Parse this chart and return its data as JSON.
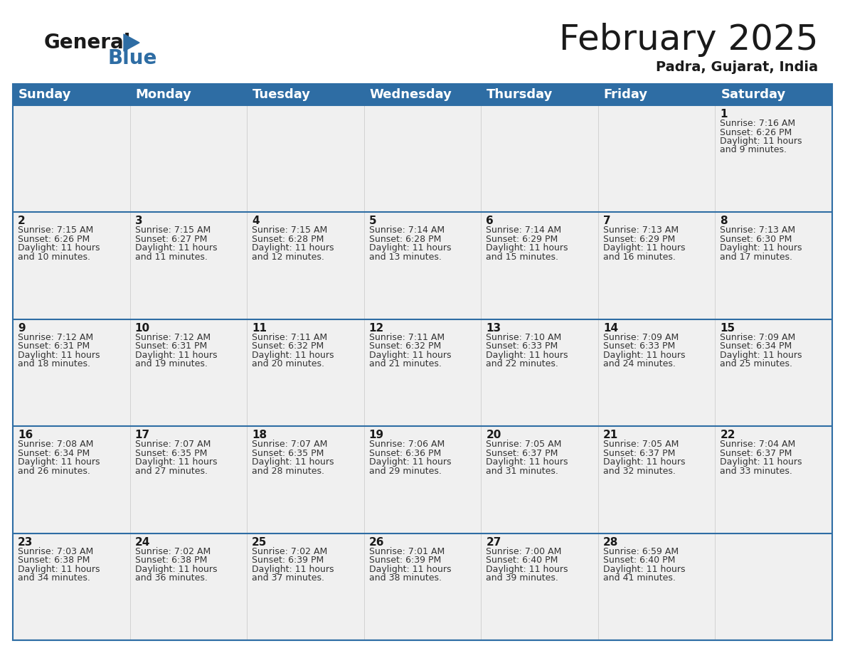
{
  "title": "February 2025",
  "subtitle": "Padra, Gujarat, India",
  "header_color": "#2e6da4",
  "header_text_color": "#ffffff",
  "cell_bg": "#f0f0f0",
  "separator_color": "#2e6da4",
  "days_of_week": [
    "Sunday",
    "Monday",
    "Tuesday",
    "Wednesday",
    "Thursday",
    "Friday",
    "Saturday"
  ],
  "title_fontsize": 36,
  "subtitle_fontsize": 14,
  "day_header_fontsize": 13,
  "date_fontsize": 11,
  "info_fontsize": 9,
  "logo_general_color": "#1a1a1a",
  "logo_blue_color": "#2e6da4",
  "calendar_data": [
    [
      null,
      null,
      null,
      null,
      null,
      null,
      {
        "day": 1,
        "sunrise": "7:16 AM",
        "sunset": "6:26 PM",
        "daylight_line1": "Daylight: 11 hours",
        "daylight_line2": "and 9 minutes."
      }
    ],
    [
      {
        "day": 2,
        "sunrise": "7:15 AM",
        "sunset": "6:26 PM",
        "daylight_line1": "Daylight: 11 hours",
        "daylight_line2": "and 10 minutes."
      },
      {
        "day": 3,
        "sunrise": "7:15 AM",
        "sunset": "6:27 PM",
        "daylight_line1": "Daylight: 11 hours",
        "daylight_line2": "and 11 minutes."
      },
      {
        "day": 4,
        "sunrise": "7:15 AM",
        "sunset": "6:28 PM",
        "daylight_line1": "Daylight: 11 hours",
        "daylight_line2": "and 12 minutes."
      },
      {
        "day": 5,
        "sunrise": "7:14 AM",
        "sunset": "6:28 PM",
        "daylight_line1": "Daylight: 11 hours",
        "daylight_line2": "and 13 minutes."
      },
      {
        "day": 6,
        "sunrise": "7:14 AM",
        "sunset": "6:29 PM",
        "daylight_line1": "Daylight: 11 hours",
        "daylight_line2": "and 15 minutes."
      },
      {
        "day": 7,
        "sunrise": "7:13 AM",
        "sunset": "6:29 PM",
        "daylight_line1": "Daylight: 11 hours",
        "daylight_line2": "and 16 minutes."
      },
      {
        "day": 8,
        "sunrise": "7:13 AM",
        "sunset": "6:30 PM",
        "daylight_line1": "Daylight: 11 hours",
        "daylight_line2": "and 17 minutes."
      }
    ],
    [
      {
        "day": 9,
        "sunrise": "7:12 AM",
        "sunset": "6:31 PM",
        "daylight_line1": "Daylight: 11 hours",
        "daylight_line2": "and 18 minutes."
      },
      {
        "day": 10,
        "sunrise": "7:12 AM",
        "sunset": "6:31 PM",
        "daylight_line1": "Daylight: 11 hours",
        "daylight_line2": "and 19 minutes."
      },
      {
        "day": 11,
        "sunrise": "7:11 AM",
        "sunset": "6:32 PM",
        "daylight_line1": "Daylight: 11 hours",
        "daylight_line2": "and 20 minutes."
      },
      {
        "day": 12,
        "sunrise": "7:11 AM",
        "sunset": "6:32 PM",
        "daylight_line1": "Daylight: 11 hours",
        "daylight_line2": "and 21 minutes."
      },
      {
        "day": 13,
        "sunrise": "7:10 AM",
        "sunset": "6:33 PM",
        "daylight_line1": "Daylight: 11 hours",
        "daylight_line2": "and 22 minutes."
      },
      {
        "day": 14,
        "sunrise": "7:09 AM",
        "sunset": "6:33 PM",
        "daylight_line1": "Daylight: 11 hours",
        "daylight_line2": "and 24 minutes."
      },
      {
        "day": 15,
        "sunrise": "7:09 AM",
        "sunset": "6:34 PM",
        "daylight_line1": "Daylight: 11 hours",
        "daylight_line2": "and 25 minutes."
      }
    ],
    [
      {
        "day": 16,
        "sunrise": "7:08 AM",
        "sunset": "6:34 PM",
        "daylight_line1": "Daylight: 11 hours",
        "daylight_line2": "and 26 minutes."
      },
      {
        "day": 17,
        "sunrise": "7:07 AM",
        "sunset": "6:35 PM",
        "daylight_line1": "Daylight: 11 hours",
        "daylight_line2": "and 27 minutes."
      },
      {
        "day": 18,
        "sunrise": "7:07 AM",
        "sunset": "6:35 PM",
        "daylight_line1": "Daylight: 11 hours",
        "daylight_line2": "and 28 minutes."
      },
      {
        "day": 19,
        "sunrise": "7:06 AM",
        "sunset": "6:36 PM",
        "daylight_line1": "Daylight: 11 hours",
        "daylight_line2": "and 29 minutes."
      },
      {
        "day": 20,
        "sunrise": "7:05 AM",
        "sunset": "6:37 PM",
        "daylight_line1": "Daylight: 11 hours",
        "daylight_line2": "and 31 minutes."
      },
      {
        "day": 21,
        "sunrise": "7:05 AM",
        "sunset": "6:37 PM",
        "daylight_line1": "Daylight: 11 hours",
        "daylight_line2": "and 32 minutes."
      },
      {
        "day": 22,
        "sunrise": "7:04 AM",
        "sunset": "6:37 PM",
        "daylight_line1": "Daylight: 11 hours",
        "daylight_line2": "and 33 minutes."
      }
    ],
    [
      {
        "day": 23,
        "sunrise": "7:03 AM",
        "sunset": "6:38 PM",
        "daylight_line1": "Daylight: 11 hours",
        "daylight_line2": "and 34 minutes."
      },
      {
        "day": 24,
        "sunrise": "7:02 AM",
        "sunset": "6:38 PM",
        "daylight_line1": "Daylight: 11 hours",
        "daylight_line2": "and 36 minutes."
      },
      {
        "day": 25,
        "sunrise": "7:02 AM",
        "sunset": "6:39 PM",
        "daylight_line1": "Daylight: 11 hours",
        "daylight_line2": "and 37 minutes."
      },
      {
        "day": 26,
        "sunrise": "7:01 AM",
        "sunset": "6:39 PM",
        "daylight_line1": "Daylight: 11 hours",
        "daylight_line2": "and 38 minutes."
      },
      {
        "day": 27,
        "sunrise": "7:00 AM",
        "sunset": "6:40 PM",
        "daylight_line1": "Daylight: 11 hours",
        "daylight_line2": "and 39 minutes."
      },
      {
        "day": 28,
        "sunrise": "6:59 AM",
        "sunset": "6:40 PM",
        "daylight_line1": "Daylight: 11 hours",
        "daylight_line2": "and 41 minutes."
      },
      null
    ]
  ]
}
